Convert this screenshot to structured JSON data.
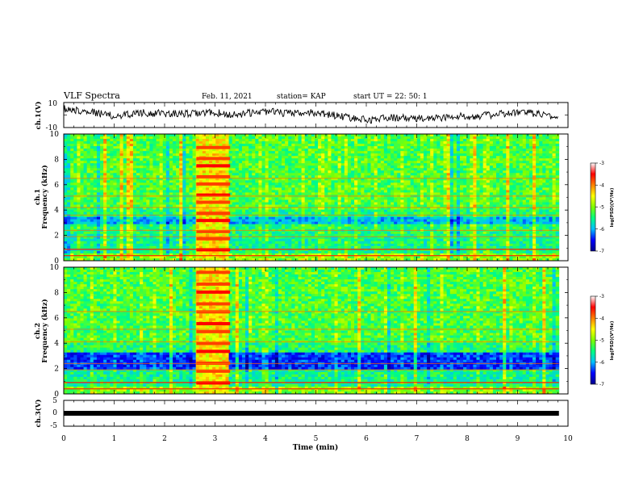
{
  "header": {
    "title": "VLF Spectra",
    "date": "Feb. 11, 2021",
    "station": "station= KAP",
    "start": "start  UT =   22: 50: 1"
  },
  "chart_data": [
    {
      "type": "line",
      "panel": "ch1-waveform",
      "ylabel": "ch.1(V)",
      "ylim": [
        -10,
        10
      ],
      "yticks": [
        "10",
        "-10"
      ],
      "xlim": [
        0,
        10
      ],
      "x_unit": "min",
      "trace_envelope": {
        "x": [
          0,
          0.5,
          1,
          1.5,
          2,
          2.5,
          3,
          3.3,
          4,
          4.5,
          5,
          5.5,
          6,
          6.5,
          7,
          7.5,
          8,
          8.5,
          9,
          9.5,
          9.8
        ],
        "y": [
          5,
          3,
          -1,
          2,
          1,
          1,
          2,
          0,
          3,
          1,
          2,
          -1,
          -4,
          -2,
          -3,
          -2,
          -1,
          0,
          2,
          1,
          -3
        ]
      }
    },
    {
      "type": "heatmap",
      "panel": "ch1-spectrogram",
      "ylabel_line1": "ch.1",
      "ylabel_line2": "Frequency (kHz)",
      "ylim": [
        0,
        10
      ],
      "yticks": [
        "0",
        "2",
        "4",
        "6",
        "8",
        "10"
      ],
      "xlim": [
        0,
        10
      ],
      "data_end_min": 9.82,
      "burst_interval_min": [
        2.63,
        3.3
      ],
      "blue_band_khz": [
        2.8,
        3.4
      ],
      "horizontal_lines_khz": [
        0.4,
        0.9,
        1.9,
        2.4,
        3.6,
        4.2,
        5.1,
        6.5
      ],
      "colorbar": {
        "label": "log(PSD)(V²/Hz)",
        "ticks": [
          "-3",
          "-4",
          "-5",
          "-6",
          "-7"
        ],
        "range": [
          -7,
          -3
        ]
      }
    },
    {
      "type": "heatmap",
      "panel": "ch2-spectrogram",
      "ylabel_line1": "ch.2",
      "ylabel_line2": "Frequency (kHz)",
      "ylim": [
        0,
        10
      ],
      "yticks": [
        "0",
        "2",
        "4",
        "6",
        "8",
        "10"
      ],
      "xlim": [
        0,
        10
      ],
      "data_end_min": 9.82,
      "burst_interval_min": [
        2.63,
        3.3
      ],
      "blue_band_khz": [
        2.0,
        3.2
      ],
      "horizontal_lines_khz": [
        0.4,
        0.9,
        1.9,
        2.4,
        4.1,
        5.1,
        6.5
      ],
      "colorbar": {
        "label": "log(PSD)(V²/Hz)",
        "ticks": [
          "-3",
          "-4",
          "-5",
          "-6",
          "-7"
        ],
        "range": [
          -7,
          -3
        ]
      }
    },
    {
      "type": "line",
      "panel": "ch3-waveform",
      "ylabel": "ch.3(V)",
      "ylim": [
        -5,
        5
      ],
      "yticks": [
        "5",
        "0",
        "-5"
      ],
      "xlim": [
        0,
        10
      ],
      "trace_level_v": 0,
      "trace_end_min": 9.82
    }
  ],
  "xaxis": {
    "label": "Time  (min)",
    "ticks": [
      "0",
      "1",
      "2",
      "3",
      "4",
      "5",
      "6",
      "7",
      "8",
      "9",
      "10"
    ]
  },
  "colors": {
    "trace": "#000000",
    "colorscale": [
      "#00008b",
      "#0000ff",
      "#00bfff",
      "#00ff80",
      "#7fff00",
      "#ffff00",
      "#ff8000",
      "#ff0000",
      "#ffffff"
    ]
  }
}
